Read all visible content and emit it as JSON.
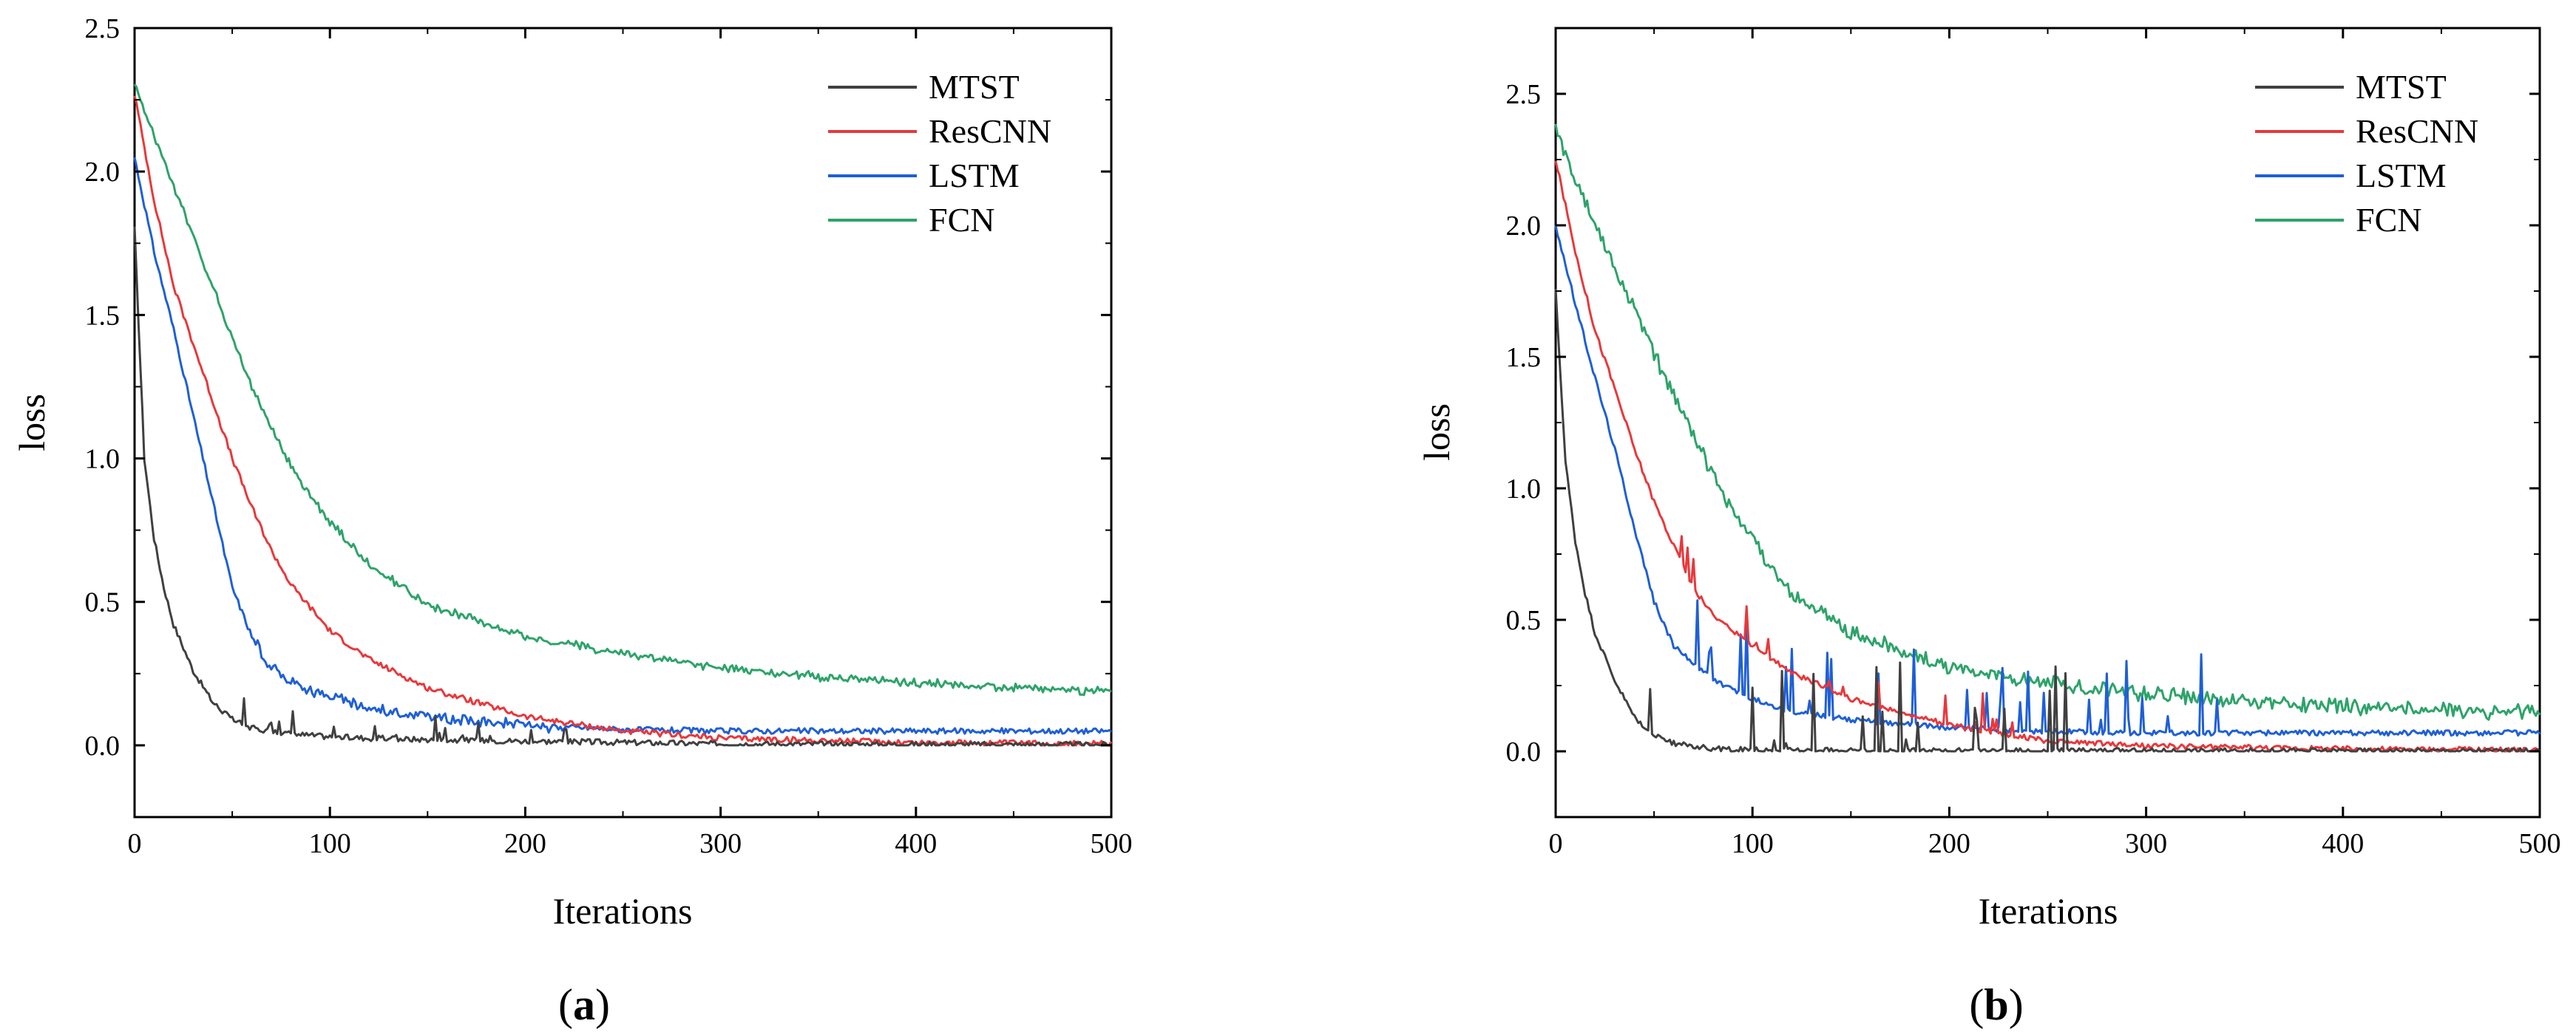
{
  "chart_data": [
    {
      "type": "line",
      "panel_label": "a",
      "xlabel": "Iterations",
      "ylabel": "loss",
      "xlim": [
        0,
        500
      ],
      "ylim": [
        -0.25,
        2.5
      ],
      "xticks": [
        "0",
        "100",
        "200",
        "300",
        "400",
        "500"
      ],
      "yticks": [
        "0.0",
        "0.5",
        "1.0",
        "1.5",
        "2.0",
        "2.5"
      ],
      "legend_position": "top-right",
      "series": [
        {
          "name": "MTST",
          "color": "#404040",
          "x": [
            0,
            5,
            10,
            15,
            20,
            30,
            40,
            50,
            60,
            70,
            80,
            100,
            120,
            150,
            200,
            250,
            300,
            400,
            500
          ],
          "y": [
            1.8,
            1.0,
            0.72,
            0.55,
            0.42,
            0.26,
            0.15,
            0.09,
            0.06,
            0.05,
            0.04,
            0.03,
            0.025,
            0.02,
            0.015,
            0.01,
            0.005,
            0.003,
            0.002
          ]
        },
        {
          "name": "ResCNN",
          "color": "#E8383B",
          "x": [
            0,
            10,
            20,
            30,
            40,
            50,
            60,
            70,
            80,
            100,
            120,
            150,
            200,
            250,
            300,
            400,
            500
          ],
          "y": [
            2.27,
            1.9,
            1.6,
            1.4,
            1.2,
            1.0,
            0.83,
            0.68,
            0.56,
            0.4,
            0.3,
            0.2,
            0.1,
            0.05,
            0.025,
            0.01,
            0.005
          ]
        },
        {
          "name": "LSTM",
          "color": "#1F5FD6",
          "x": [
            0,
            10,
            20,
            30,
            40,
            50,
            60,
            70,
            80,
            100,
            120,
            150,
            200,
            250,
            300,
            400,
            500
          ],
          "y": [
            2.05,
            1.72,
            1.45,
            1.15,
            0.85,
            0.55,
            0.38,
            0.27,
            0.22,
            0.17,
            0.13,
            0.1,
            0.07,
            0.055,
            0.05,
            0.05,
            0.05
          ]
        },
        {
          "name": "FCN",
          "color": "#2EA36A",
          "x": [
            0,
            20,
            40,
            60,
            80,
            100,
            120,
            150,
            200,
            250,
            300,
            350,
            400,
            450,
            500
          ],
          "y": [
            2.3,
            1.95,
            1.6,
            1.25,
            0.97,
            0.78,
            0.63,
            0.49,
            0.38,
            0.32,
            0.27,
            0.24,
            0.22,
            0.2,
            0.19
          ]
        }
      ]
    },
    {
      "type": "line",
      "panel_label": "b",
      "xlabel": "Iterations",
      "ylabel": "loss",
      "xlim": [
        0,
        500
      ],
      "ylim": [
        -0.25,
        2.75
      ],
      "xticks": [
        "0",
        "100",
        "200",
        "300",
        "400",
        "500"
      ],
      "yticks": [
        "0.0",
        "0.5",
        "1.0",
        "1.5",
        "2.0",
        "2.5"
      ],
      "legend_position": "top-right",
      "series": [
        {
          "name": "MTST",
          "color": "#404040",
          "x": [
            0,
            5,
            10,
            15,
            20,
            30,
            40,
            50,
            60,
            80,
            100,
            150,
            200,
            300,
            400,
            500
          ],
          "y": [
            1.75,
            1.1,
            0.8,
            0.6,
            0.45,
            0.27,
            0.13,
            0.06,
            0.03,
            0.01,
            0.005,
            0.003,
            0.002,
            0.002,
            0.002,
            0.002
          ]
        },
        {
          "name": "ResCNN",
          "color": "#E8383B",
          "x": [
            0,
            10,
            20,
            30,
            40,
            50,
            60,
            70,
            80,
            100,
            120,
            150,
            200,
            250,
            300,
            400,
            500
          ],
          "y": [
            2.25,
            1.9,
            1.6,
            1.38,
            1.15,
            0.95,
            0.78,
            0.62,
            0.52,
            0.4,
            0.3,
            0.2,
            0.1,
            0.04,
            0.02,
            0.01,
            0.005
          ]
        },
        {
          "name": "LSTM",
          "color": "#1F5FD6",
          "x": [
            0,
            10,
            20,
            30,
            40,
            50,
            60,
            80,
            100,
            120,
            150,
            200,
            250,
            300,
            400,
            500
          ],
          "y": [
            2.0,
            1.7,
            1.42,
            1.15,
            0.85,
            0.57,
            0.4,
            0.27,
            0.2,
            0.15,
            0.12,
            0.09,
            0.075,
            0.07,
            0.07,
            0.07
          ]
        },
        {
          "name": "FCN",
          "color": "#2EA36A",
          "x": [
            0,
            20,
            40,
            60,
            80,
            100,
            120,
            150,
            200,
            250,
            300,
            350,
            400,
            450,
            500
          ],
          "y": [
            2.36,
            2.0,
            1.68,
            1.35,
            1.05,
            0.8,
            0.6,
            0.45,
            0.32,
            0.26,
            0.22,
            0.19,
            0.17,
            0.155,
            0.145
          ]
        }
      ]
    }
  ]
}
